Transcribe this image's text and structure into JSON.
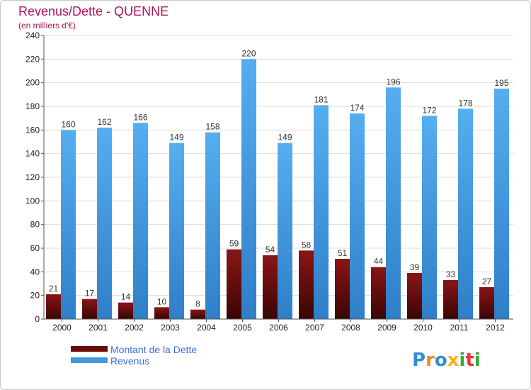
{
  "chart_data": {
    "type": "bar",
    "title": "Revenus/Dette - QUENNE",
    "subtitle": "(en milliers d'€)",
    "categories": [
      "2000",
      "2001",
      "2002",
      "2003",
      "2004",
      "2005",
      "2006",
      "2007",
      "2008",
      "2009",
      "2010",
      "2011",
      "2012"
    ],
    "series": [
      {
        "name": "Montant de la Dette",
        "color": "#6b0a0a",
        "values": [
          21,
          17,
          14,
          10,
          8,
          59,
          54,
          58,
          51,
          44,
          39,
          33,
          27
        ]
      },
      {
        "name": "Revenus",
        "color": "#3f97e0",
        "values": [
          160,
          162,
          166,
          149,
          158,
          220,
          149,
          181,
          174,
          196,
          172,
          178,
          195
        ]
      }
    ],
    "ylim": [
      0,
      240
    ],
    "yticks": [
      0,
      20,
      40,
      60,
      80,
      100,
      120,
      140,
      160,
      180,
      200,
      220,
      240
    ],
    "grid": true,
    "legend": "bottom-left"
  },
  "brand": {
    "letters": [
      "P",
      "r",
      "o",
      "x",
      "i",
      "t",
      "i"
    ],
    "colors": [
      "#2f8fd8",
      "#f08a1c",
      "#2f8fd8",
      "#f0b41c",
      "#38a838",
      "#e03a3a",
      "#38a838"
    ]
  }
}
